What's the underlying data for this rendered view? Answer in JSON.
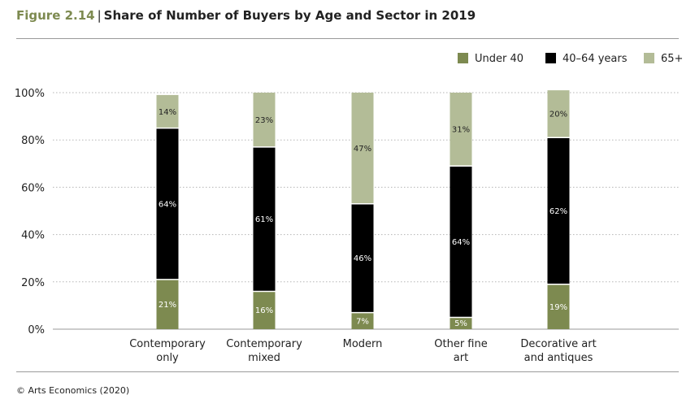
{
  "header": {
    "figure_label": "Figure 2.14",
    "separator": "|",
    "title": "Share of Number of Buyers by Age and Sector in 2019"
  },
  "footer": {
    "source": "© Arts Economics (2020)"
  },
  "colors": {
    "Under 40": "#7d8a50",
    "40–64 years": "#000000",
    "65+": "#b3bc97"
  },
  "chart_data": {
    "type": "bar",
    "stacked": true,
    "categories": [
      [
        "Contemporary",
        "only"
      ],
      [
        "Contemporary",
        "mixed"
      ],
      [
        "Modern"
      ],
      [
        "Other fine",
        "art"
      ],
      [
        "Decorative art",
        "and antiques"
      ]
    ],
    "series": [
      {
        "name": "Under 40",
        "values": [
          21,
          16,
          7,
          5,
          19
        ]
      },
      {
        "name": "40–64 years",
        "values": [
          64,
          61,
          46,
          64,
          62
        ]
      },
      {
        "name": "65+",
        "values": [
          14,
          23,
          47,
          31,
          20
        ]
      }
    ],
    "ylim": [
      0,
      100
    ],
    "yticks": [
      "0%",
      "20%",
      "40%",
      "60%",
      "80%",
      "100%"
    ],
    "grid": true,
    "legend_position": "top-right",
    "data_label_suffix": "%"
  }
}
